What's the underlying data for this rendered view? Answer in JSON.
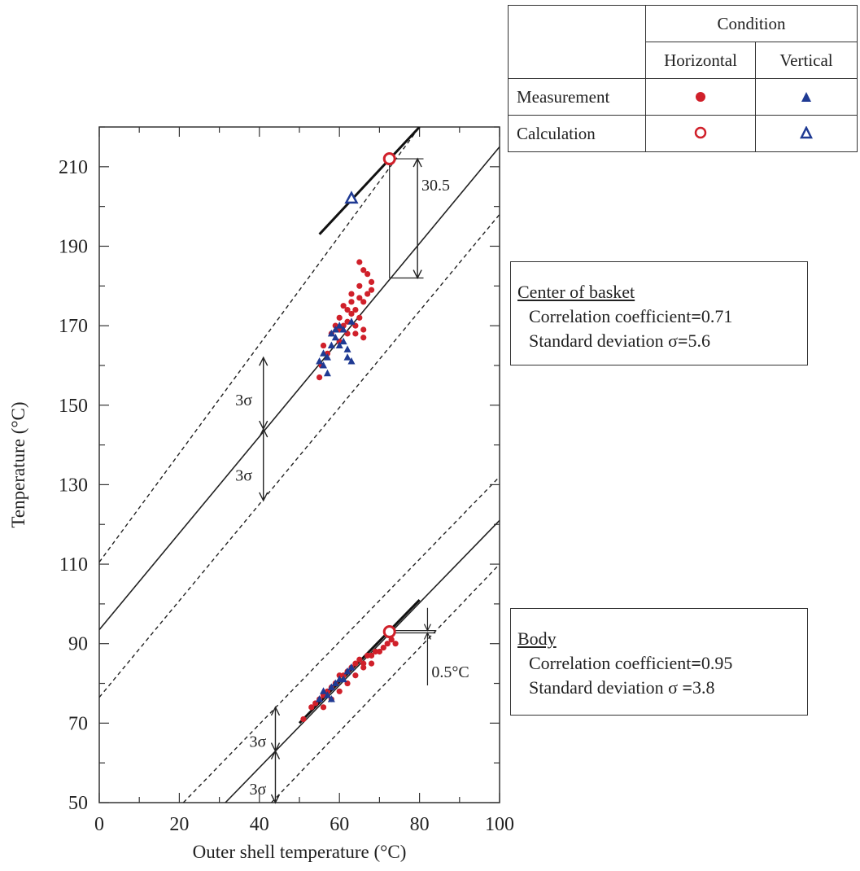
{
  "legend": {
    "condition_label": "Condition",
    "col_horizontal": "Horizontal",
    "col_vertical": "Vertical",
    "row_measurement": "Measurement",
    "row_calculation": "Calculation",
    "horizontal_color": "#d0202a",
    "vertical_color": "#1f3a93"
  },
  "stats": {
    "basket": {
      "title": "Center of basket",
      "corr_label": "Correlation coefficient",
      "corr_value": "0.71",
      "sd_label": "Standard deviation σ",
      "sd_value": "5.6"
    },
    "body": {
      "title": "Body",
      "corr_label": "Correlation coefficient",
      "corr_value": "0.95",
      "sd_label": "Standard deviation σ ",
      "sd_value": "3.8"
    }
  },
  "annotations": {
    "gap_label": "30.5",
    "sigma_label": "3σ",
    "offset_label": "0.5°C"
  },
  "chart_data": {
    "type": "scatter",
    "xlabel": "Outer shell temperature (°C)",
    "ylabel": "Tenperature (°C)",
    "xlim": [
      0,
      100
    ],
    "ylim": [
      50,
      220
    ],
    "x_ticks": [
      0,
      20,
      40,
      60,
      80,
      100
    ],
    "y_ticks": [
      50,
      70,
      90,
      110,
      130,
      150,
      170,
      190,
      210
    ],
    "regression_lines": [
      {
        "group": "basket",
        "x1": 0,
        "y1": 93.5,
        "x2": 100,
        "y2": 215
      },
      {
        "group": "body",
        "x1": 31.5,
        "y1": 50,
        "x2": 100,
        "y2": 121
      }
    ],
    "band_lines": [
      {
        "group": "basket",
        "x1": 0,
        "y1": 110.5,
        "x2": 80,
        "y2": 220
      },
      {
        "group": "basket",
        "x1": 0,
        "y1": 76.5,
        "x2": 100,
        "y2": 198
      },
      {
        "group": "body",
        "x1": 21,
        "y1": 50,
        "x2": 100,
        "y2": 132
      },
      {
        "group": "body",
        "x1": 43,
        "y1": 50,
        "x2": 100,
        "y2": 110
      }
    ],
    "calc_lines": [
      {
        "group": "basket",
        "x1": 55,
        "y1": 193,
        "x2": 80,
        "y2": 220
      },
      {
        "group": "body",
        "x1": 50,
        "y1": 70,
        "x2": 80,
        "y2": 101
      }
    ],
    "series": [
      {
        "name": "Measurement Horizontal",
        "marker": "filled-circle",
        "color": "#d0202a",
        "points": [
          [
            55,
            157
          ],
          [
            55.5,
            160
          ],
          [
            56,
            165
          ],
          [
            57,
            163
          ],
          [
            58,
            168
          ],
          [
            59,
            170
          ],
          [
            60,
            172
          ],
          [
            60,
            166
          ],
          [
            61,
            175
          ],
          [
            62,
            171
          ],
          [
            62,
            168
          ],
          [
            63,
            173
          ],
          [
            63,
            176
          ],
          [
            64,
            174
          ],
          [
            64,
            170
          ],
          [
            65,
            186
          ],
          [
            65,
            180
          ],
          [
            65,
            172
          ],
          [
            66,
            184
          ],
          [
            66,
            176
          ],
          [
            66,
            169
          ],
          [
            67,
            183
          ],
          [
            67,
            178
          ],
          [
            68,
            181
          ],
          [
            68,
            179
          ],
          [
            64,
            168
          ],
          [
            66,
            167
          ],
          [
            60,
            169
          ],
          [
            61,
            170
          ],
          [
            62,
            174
          ],
          [
            63,
            178
          ],
          [
            65,
            177
          ],
          [
            51,
            71
          ],
          [
            53,
            74
          ],
          [
            54,
            75
          ],
          [
            55,
            76
          ],
          [
            56,
            77
          ],
          [
            57,
            78
          ],
          [
            58,
            79
          ],
          [
            59,
            80
          ],
          [
            60,
            82
          ],
          [
            61,
            82
          ],
          [
            62,
            83
          ],
          [
            63,
            84
          ],
          [
            64,
            85
          ],
          [
            65,
            86
          ],
          [
            66,
            85
          ],
          [
            67,
            87
          ],
          [
            68,
            87
          ],
          [
            69,
            88
          ],
          [
            70,
            88
          ],
          [
            71,
            89
          ],
          [
            72,
            90
          ],
          [
            73,
            91
          ],
          [
            74,
            90
          ],
          [
            56,
            74
          ],
          [
            58,
            76
          ],
          [
            60,
            78
          ],
          [
            62,
            80
          ],
          [
            64,
            82
          ],
          [
            66,
            84
          ],
          [
            68,
            85
          ]
        ]
      },
      {
        "name": "Measurement Vertical",
        "marker": "filled-triangle",
        "color": "#1f3a93",
        "points": [
          [
            55,
            161
          ],
          [
            56,
            163
          ],
          [
            56,
            160
          ],
          [
            57,
            162
          ],
          [
            57,
            158
          ],
          [
            58,
            165
          ],
          [
            58,
            168
          ],
          [
            59,
            169
          ],
          [
            59,
            167
          ],
          [
            60,
            170
          ],
          [
            60,
            165
          ],
          [
            61,
            166
          ],
          [
            61,
            169
          ],
          [
            62,
            164
          ],
          [
            62,
            162
          ],
          [
            63,
            171
          ],
          [
            63,
            161
          ],
          [
            56,
            78
          ],
          [
            57,
            77
          ],
          [
            58,
            79
          ],
          [
            59,
            80
          ],
          [
            60,
            81
          ],
          [
            61,
            81
          ],
          [
            62,
            83
          ],
          [
            63,
            84
          ],
          [
            55,
            76
          ],
          [
            58,
            76
          ]
        ]
      },
      {
        "name": "Calculation Horizontal",
        "marker": "hollow-circle",
        "color": "#d0202a",
        "points": [
          [
            72.5,
            212
          ],
          [
            72.5,
            93
          ]
        ]
      },
      {
        "name": "Calculation Vertical",
        "marker": "hollow-triangle",
        "color": "#1f3a93",
        "points": [
          [
            63,
            202
          ]
        ]
      }
    ]
  }
}
